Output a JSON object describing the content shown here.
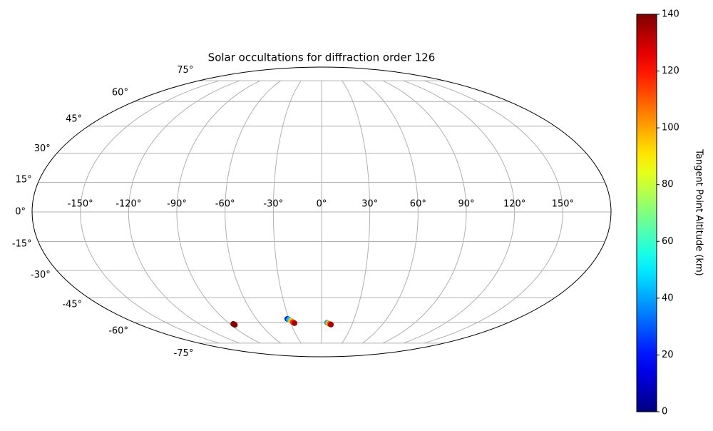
{
  "chart_data": {
    "type": "scatter",
    "projection": "mollweide",
    "title": "Solar occultations for diffraction order 126",
    "lon": [
      -86.5,
      -86,
      -31.6,
      -30.3,
      -28.8,
      -27.6,
      -26.3,
      5.3,
      6.6,
      7.8,
      9.2
    ],
    "lat": [
      -61.0,
      -61.6,
      -57.8,
      -58.2,
      -59.0,
      -59.8,
      -60.5,
      -60.2,
      -60.6,
      -61.0,
      -61.4
    ],
    "altitude": [
      138,
      140,
      20,
      45,
      95,
      115,
      135,
      40,
      95,
      110,
      135
    ],
    "xticks": [
      {
        "value": -150,
        "label": "-150°"
      },
      {
        "value": -120,
        "label": "-120°"
      },
      {
        "value": -90,
        "label": "-90°"
      },
      {
        "value": -60,
        "label": "-60°"
      },
      {
        "value": -30,
        "label": "-30°"
      },
      {
        "value": 0,
        "label": "0°"
      },
      {
        "value": 30,
        "label": "30°"
      },
      {
        "value": 60,
        "label": "60°"
      },
      {
        "value": 90,
        "label": "90°"
      },
      {
        "value": 120,
        "label": "120°"
      },
      {
        "value": 150,
        "label": "150°"
      }
    ],
    "yticks": [
      {
        "value": -75,
        "label": "-75°"
      },
      {
        "value": -60,
        "label": "-60°"
      },
      {
        "value": -45,
        "label": "-45°"
      },
      {
        "value": -30,
        "label": "-30°"
      },
      {
        "value": -15,
        "label": "-15°"
      },
      {
        "value": 0,
        "label": "0°"
      },
      {
        "value": 15,
        "label": "15°"
      },
      {
        "value": 30,
        "label": "30°"
      },
      {
        "value": 45,
        "label": "45°"
      },
      {
        "value": 60,
        "label": "60°"
      },
      {
        "value": 75,
        "label": "75°"
      }
    ],
    "grid": true,
    "colormap": "jet",
    "colorbar": {
      "label": "Tangent Point Altitude (km)",
      "lim": [
        0,
        140
      ],
      "ticks": [
        0,
        20,
        40,
        60,
        80,
        100,
        120,
        140
      ]
    }
  }
}
